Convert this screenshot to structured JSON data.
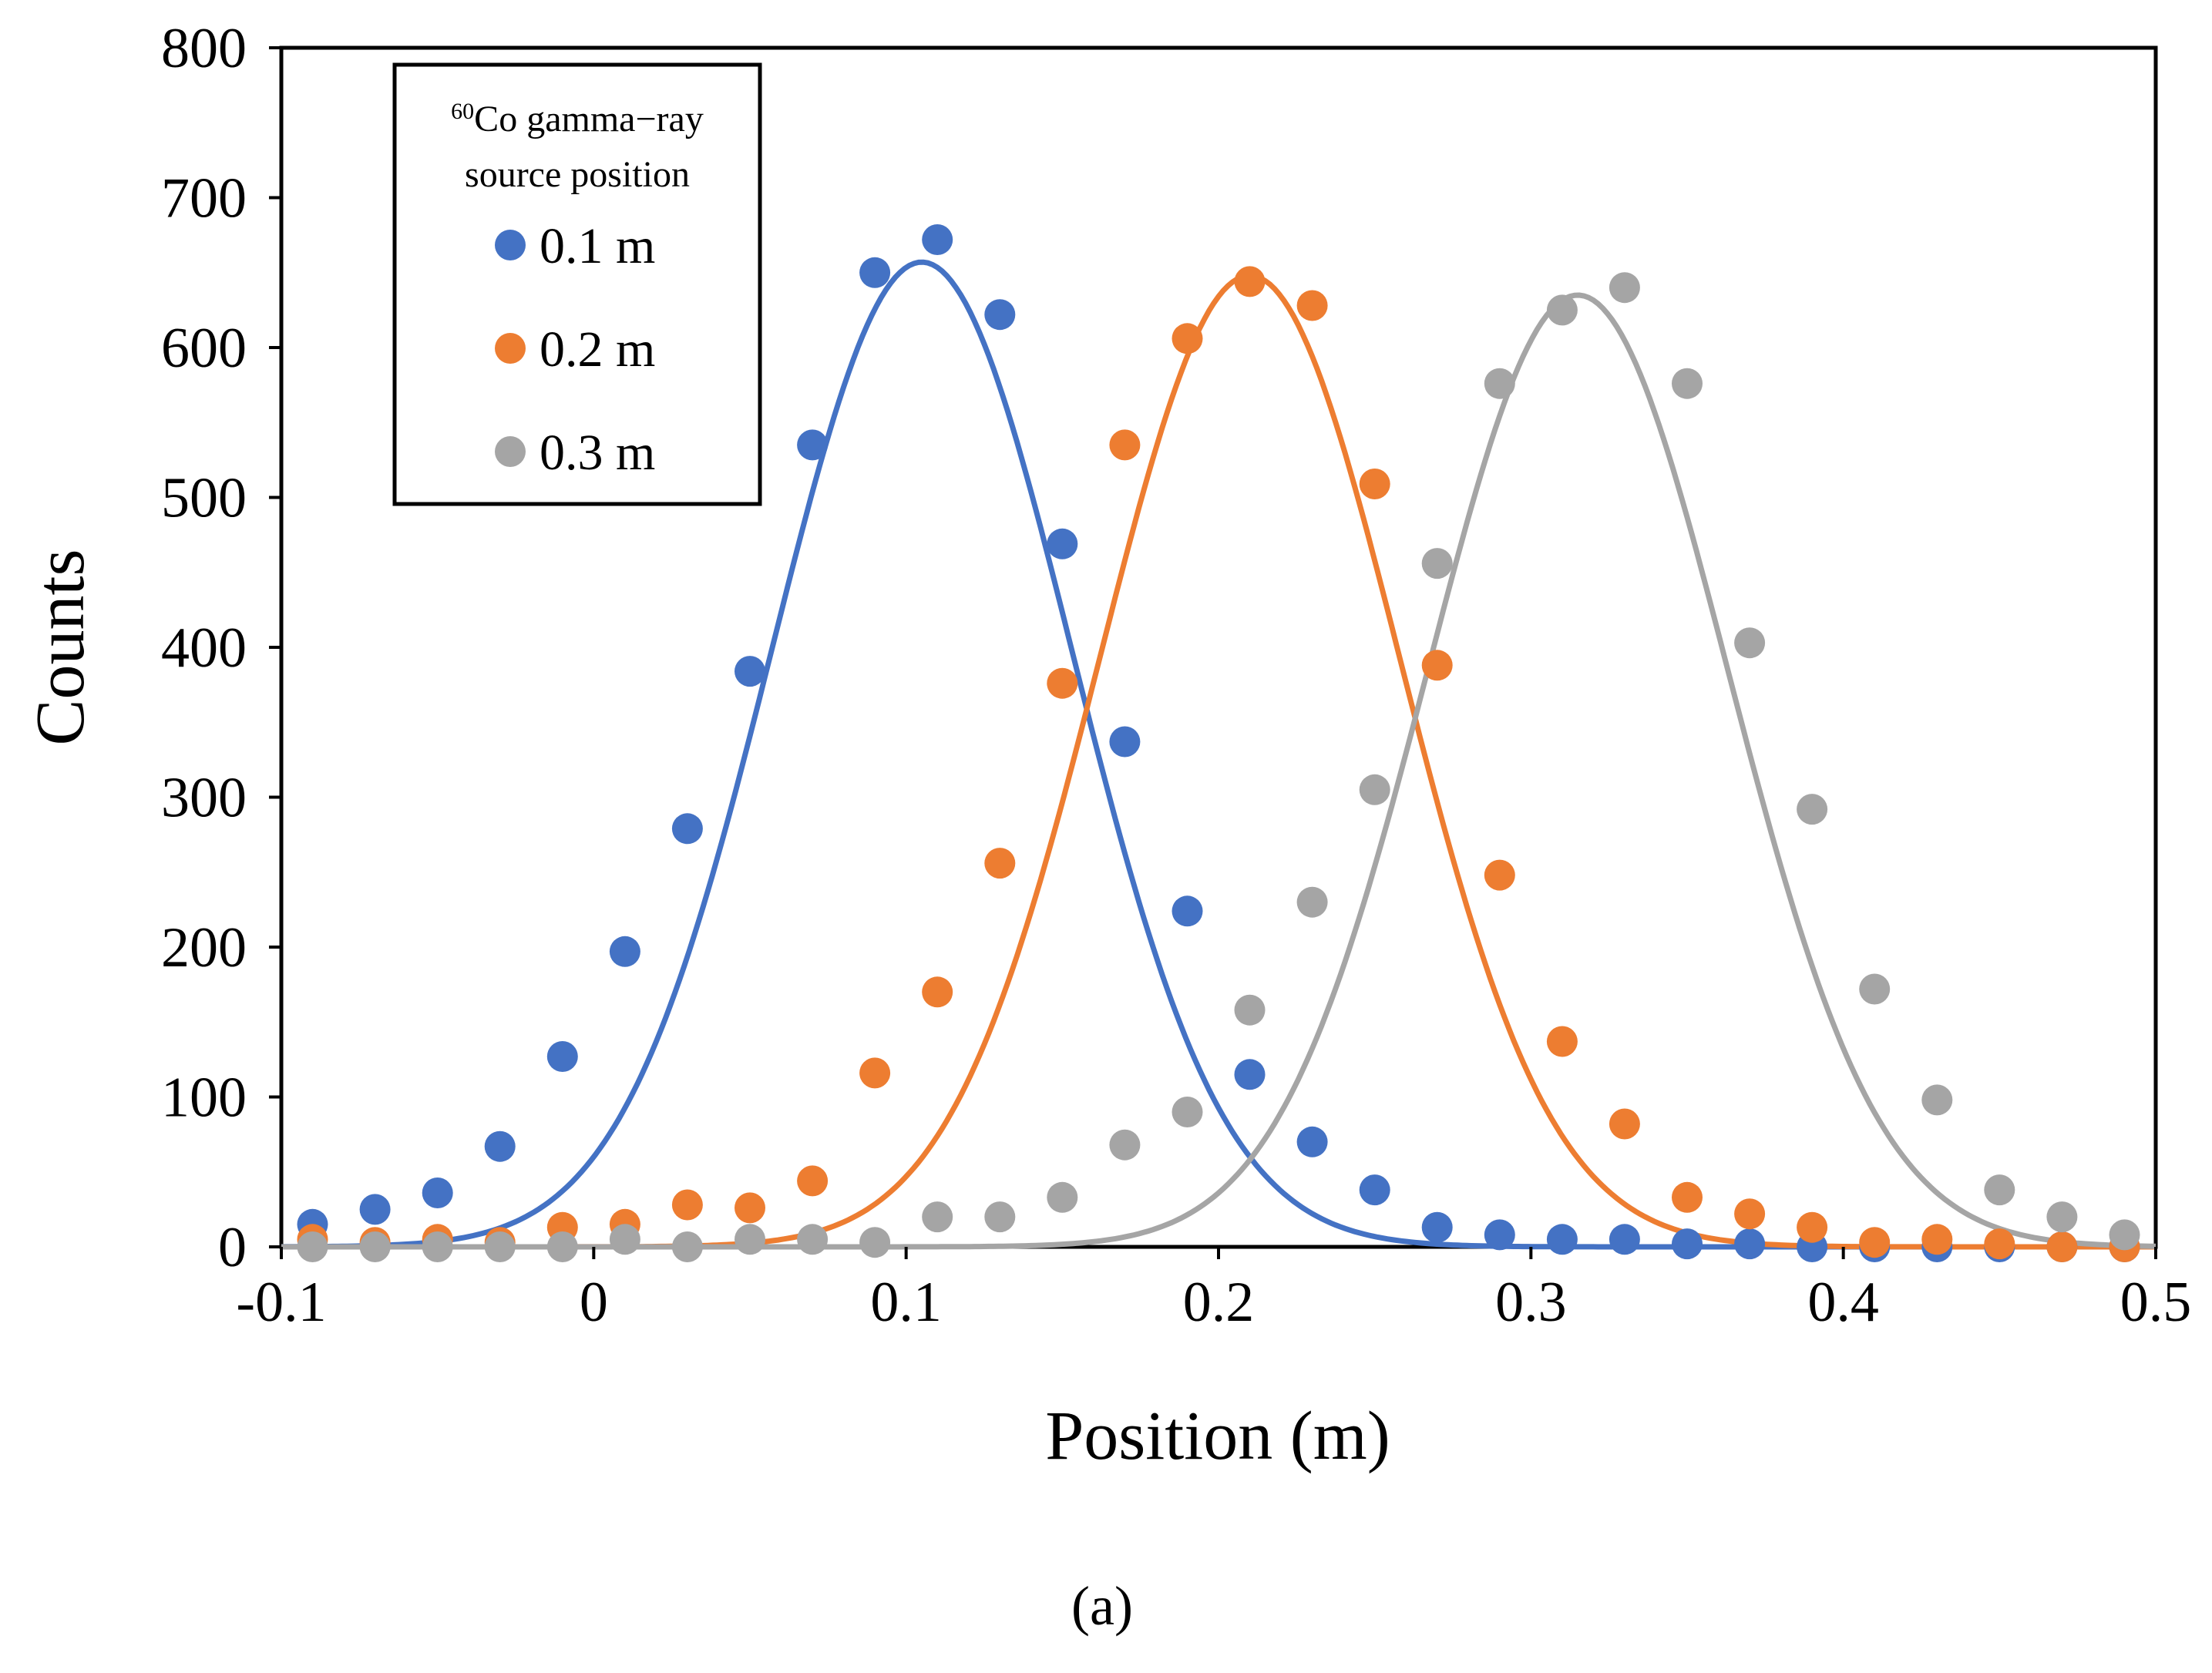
{
  "chart_data": {
    "type": "scatter",
    "title": "",
    "xlabel": "Position (m)",
    "ylabel": "Counts",
    "xlim": [
      -0.1,
      0.5
    ],
    "ylim": [
      0,
      800
    ],
    "xticks": [
      -0.1,
      0,
      0.1,
      0.2,
      0.3,
      0.4,
      0.5
    ],
    "xtick_labels": [
      "-0.1",
      "0",
      "0.1",
      "0.2",
      "0.3",
      "0.4",
      "0.5"
    ],
    "yticks": [
      0,
      100,
      200,
      300,
      400,
      500,
      600,
      700,
      800
    ],
    "ytick_labels": [
      "0",
      "100",
      "200",
      "300",
      "400",
      "500",
      "600",
      "700",
      "800"
    ],
    "grid": false,
    "legend": {
      "placement": "top-left",
      "title_sup": "60",
      "title_line1": "Co gamma−ray",
      "title_line2": "source position"
    },
    "caption": "(a)",
    "x": [
      -0.09,
      -0.07,
      -0.05,
      -0.03,
      -0.01,
      0.01,
      0.03,
      0.05,
      0.07,
      0.09,
      0.11,
      0.13,
      0.15,
      0.17,
      0.19,
      0.21,
      0.23,
      0.25,
      0.27,
      0.29,
      0.31,
      0.33,
      0.35,
      0.37,
      0.39,
      0.41,
      0.43,
      0.45,
      0.47,
      0.49
    ],
    "series": [
      {
        "name": "0.1 m",
        "color": "#4472C4",
        "values": [
          15,
          25,
          36,
          67,
          127,
          197,
          279,
          384,
          535,
          650,
          672,
          622,
          469,
          337,
          224,
          115,
          70,
          38,
          13,
          8,
          5,
          5,
          2,
          2,
          0,
          0,
          0,
          0,
          0,
          0
        ],
        "fit": {
          "type": "gaussian",
          "amplitude": 657,
          "center": 0.105,
          "sigma": 0.048
        }
      },
      {
        "name": "0.2 m",
        "color": "#ED7D31",
        "values": [
          5,
          3,
          5,
          3,
          13,
          15,
          28,
          26,
          44,
          116,
          170,
          256,
          376,
          535,
          606,
          644,
          628,
          509,
          388,
          248,
          137,
          82,
          33,
          22,
          13,
          3,
          5,
          2,
          0,
          0
        ],
        "fit": {
          "type": "gaussian",
          "amplitude": 648,
          "center": 0.21,
          "sigma": 0.048
        }
      },
      {
        "name": "0.3 m",
        "color": "#A5A5A5",
        "values": [
          0,
          0,
          0,
          0,
          0,
          5,
          0,
          5,
          5,
          3,
          20,
          20,
          33,
          68,
          90,
          158,
          230,
          305,
          456,
          576,
          625,
          640,
          576,
          403,
          292,
          172,
          98,
          38,
          20,
          8
        ],
        "fit": {
          "type": "gaussian",
          "amplitude": 635,
          "center": 0.315,
          "sigma": 0.048
        }
      }
    ]
  }
}
